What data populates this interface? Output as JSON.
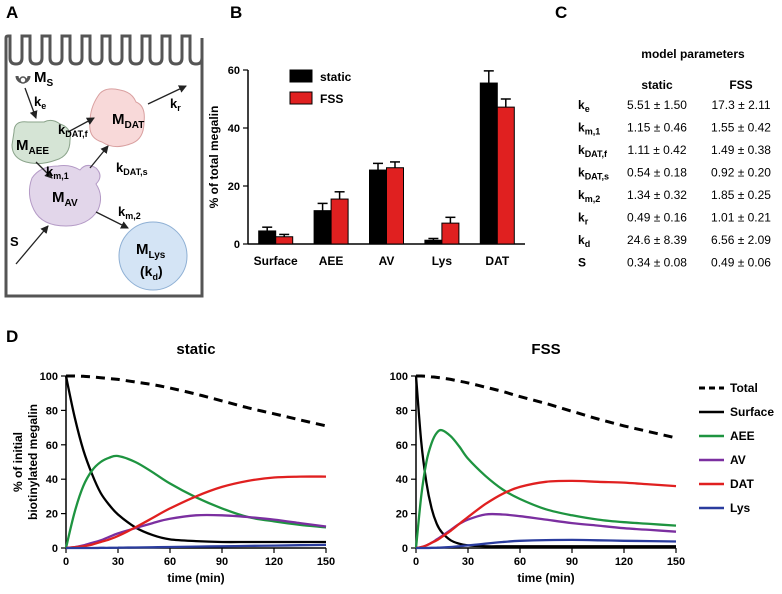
{
  "panel_labels": {
    "a": "A",
    "b": "B",
    "c": "C",
    "d": "D"
  },
  "diagram": {
    "nodes": {
      "ms": {
        "main": "M",
        "sub": "S"
      },
      "maee": {
        "main": "M",
        "sub": "AEE"
      },
      "mdat": {
        "main": "M",
        "sub": "DAT"
      },
      "mav": {
        "main": "M",
        "sub": "AV"
      },
      "mlys": {
        "main": "M",
        "sub": "Lys",
        "extra": "(k",
        "extra_sub": "d",
        "extra_close": ")"
      }
    },
    "rates": {
      "ke": {
        "main": "k",
        "sub": "e"
      },
      "kdatf": {
        "main": "k",
        "sub": "DAT,f"
      },
      "kr": {
        "main": "k",
        "sub": "r"
      },
      "km1": {
        "main": "k",
        "sub": "m,1"
      },
      "kdats": {
        "main": "k",
        "sub": "DAT,s"
      },
      "km2": {
        "main": "k",
        "sub": "m,2"
      },
      "s": "S"
    },
    "colors": {
      "aee": "#d5e4d5",
      "dat": "#f8d9d9",
      "av": "#e2d6ea",
      "lys": "#d4e4f5",
      "outline": "#555555"
    }
  },
  "chart_data": [
    {
      "id": "B",
      "type": "bar",
      "ylabel": "% of total megalin",
      "ylim": [
        0,
        60
      ],
      "yticks": [
        0,
        20,
        40,
        60
      ],
      "categories": [
        "Surface",
        "AEE",
        "AV",
        "Lys",
        "DAT"
      ],
      "series": [
        {
          "name": "static",
          "color": "#000000",
          "values": [
            4.5,
            11.5,
            25.5,
            1.3,
            55.5
          ],
          "errors": [
            1.3,
            2.5,
            2.3,
            0.6,
            4.2
          ]
        },
        {
          "name": "FSS",
          "color": "#e02020",
          "values": [
            2.5,
            15.5,
            26.3,
            7.2,
            47.2
          ],
          "errors": [
            0.8,
            2.5,
            2.0,
            2.0,
            2.8
          ]
        }
      ],
      "legend": "top-left"
    },
    {
      "id": "C",
      "type": "table",
      "title": "model parameters",
      "columns": [
        "static",
        "FSS"
      ],
      "rows": [
        {
          "k": "k",
          "sub": "e",
          "static": "5.51 ± 1.50",
          "fss": "17.3 ± 2.11"
        },
        {
          "k": "k",
          "sub": "m,1",
          "static": "1.15 ± 0.46",
          "fss": "1.55 ± 0.42"
        },
        {
          "k": "k",
          "sub": "DAT,f",
          "static": "1.11 ± 0.42",
          "fss": "1.49 ± 0.38"
        },
        {
          "k": "k",
          "sub": "DAT,s",
          "static": "0.54 ± 0.18",
          "fss": "0.92 ± 0.20"
        },
        {
          "k": "k",
          "sub": "m,2",
          "static": "1.34 ± 0.32",
          "fss": "1.85 ± 0.25"
        },
        {
          "k": "k",
          "sub": "r",
          "static": "0.49 ± 0.16",
          "fss": "1.01 ± 0.21"
        },
        {
          "k": "k",
          "sub": "d",
          "static": "24.6 ± 8.39",
          "fss": "6.56 ± 2.09"
        },
        {
          "k": "S",
          "sub": "",
          "static": "0.34 ± 0.08",
          "fss": "0.49 ± 0.06"
        }
      ]
    },
    {
      "id": "D-static",
      "type": "line",
      "title": "static",
      "xlabel": "time (min)",
      "ylabel": [
        "% of initial",
        "biotinylated megalin"
      ],
      "xlim": [
        0,
        150
      ],
      "ylim": [
        0,
        100
      ],
      "xticks": [
        0,
        30,
        60,
        90,
        120,
        150
      ],
      "yticks": [
        0,
        20,
        40,
        60,
        80,
        100
      ],
      "x": [
        0,
        5,
        10,
        15,
        20,
        25,
        30,
        40,
        50,
        60,
        75,
        90,
        105,
        120,
        135,
        150
      ],
      "series": [
        {
          "name": "Total",
          "color": "#000000",
          "dashed": true,
          "values": [
            100,
            100,
            99.8,
            99.5,
            99,
            98.5,
            98,
            96.5,
            95,
            93,
            89.5,
            85.5,
            81.5,
            78,
            74.5,
            71
          ]
        },
        {
          "name": "Surface",
          "color": "#000000",
          "values": [
            100,
            76,
            57,
            43,
            32,
            25,
            19.5,
            12,
            7.5,
            5,
            4,
            3.5,
            3.5,
            3.5,
            3.5,
            3.5
          ]
        },
        {
          "name": "AEE",
          "color": "#1e9440",
          "values": [
            0,
            21,
            36,
            45,
            50,
            52.5,
            53.5,
            50,
            44,
            37.5,
            29.5,
            23,
            18,
            15.5,
            13.5,
            12
          ]
        },
        {
          "name": "AV",
          "color": "#7b2fa0",
          "values": [
            0,
            0.5,
            1.5,
            3,
            4.5,
            6.5,
            8.5,
            11.5,
            14.5,
            17,
            19,
            19,
            18,
            16.5,
            14.5,
            12.5
          ]
        },
        {
          "name": "DAT",
          "color": "#e02020",
          "values": [
            0,
            0.5,
            1,
            2,
            3.5,
            5,
            7,
            12,
            17.5,
            23,
            30,
            35.5,
            39,
            41,
            41.5,
            41.5
          ]
        },
        {
          "name": "Lys",
          "color": "#2a3c9e",
          "values": [
            0,
            0,
            0,
            0,
            0.1,
            0.1,
            0.2,
            0.3,
            0.4,
            0.6,
            0.8,
            1,
            1.2,
            1.4,
            1.6,
            1.8
          ]
        }
      ]
    },
    {
      "id": "D-FSS",
      "type": "line",
      "title": "FSS",
      "xlabel": "time (min)",
      "xlim": [
        0,
        150
      ],
      "ylim": [
        0,
        100
      ],
      "xticks": [
        0,
        30,
        60,
        90,
        120,
        150
      ],
      "yticks": [
        0,
        20,
        40,
        60,
        80,
        100
      ],
      "x": [
        0,
        3,
        6,
        9,
        12,
        15,
        20,
        25,
        30,
        40,
        50,
        60,
        75,
        90,
        105,
        120,
        135,
        150
      ],
      "series": [
        {
          "name": "Total",
          "color": "#000000",
          "dashed": true,
          "values": [
            100,
            100,
            99.8,
            99.5,
            99.2,
            98.8,
            98,
            97,
            96,
            93.5,
            91,
            88,
            84,
            79.5,
            75,
            71,
            67.5,
            64
          ]
        },
        {
          "name": "Surface",
          "color": "#000000",
          "values": [
            100,
            62,
            38,
            23,
            14,
            9,
            4.5,
            2.5,
            1.5,
            1,
            1,
            1,
            1,
            1,
            1,
            1,
            1,
            1
          ]
        },
        {
          "name": "AEE",
          "color": "#1e9440",
          "values": [
            0,
            30,
            50,
            61,
            67,
            68.5,
            65,
            59,
            52,
            42,
            34,
            28.5,
            22.5,
            19,
            16.5,
            15,
            14,
            13
          ]
        },
        {
          "name": "AV",
          "color": "#7b2fa0",
          "values": [
            0,
            0.5,
            1.5,
            3,
            5,
            7,
            10.5,
            14,
            16.5,
            19.5,
            19.5,
            18.5,
            16.5,
            14.5,
            13,
            11.5,
            10.5,
            9.5
          ]
        },
        {
          "name": "DAT",
          "color": "#e02020",
          "values": [
            0,
            0.5,
            1.5,
            3,
            4.5,
            6.5,
            10,
            14,
            18,
            25.5,
            31.5,
            35.5,
            38.5,
            39,
            38.5,
            38,
            37,
            36
          ]
        },
        {
          "name": "Lys",
          "color": "#2a3c9e",
          "values": [
            0,
            0,
            0,
            0.1,
            0.2,
            0.3,
            0.6,
            1,
            1.5,
            2.5,
            3.5,
            4.2,
            4.6,
            4.7,
            4.5,
            4.2,
            4,
            3.8
          ]
        }
      ],
      "legend_order": [
        "Total",
        "Surface",
        "AEE",
        "AV",
        "DAT",
        "Lys"
      ]
    }
  ]
}
